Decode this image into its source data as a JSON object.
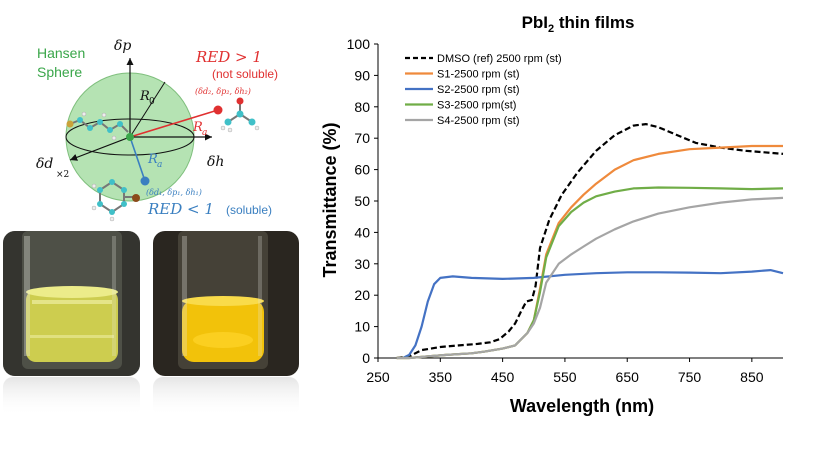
{
  "hansen": {
    "sphere_label_1": "Hansen",
    "sphere_label_2": "Sphere",
    "axis_dp": "δp",
    "axis_dh": "δh",
    "axis_dd": "δd",
    "axis_dd_sub": "×2",
    "r0": "R",
    "r0_sub": "0",
    "ra": "R",
    "ra_sub": "a",
    "red_gt": "RED > 1",
    "not_soluble": "(not soluble)",
    "red_lt": "RED < 1",
    "soluble": "(soluble)",
    "point2": "(δd₂, δp₂, δh₂)",
    "point1": "(δd₁, δp₁, δh₁)",
    "colors": {
      "sphere": "#b5e3b3",
      "red": "#e03030",
      "blue": "#3a7fc0",
      "green_text": "#3aa64a"
    }
  },
  "photos": {
    "left_liquid_color": "#d8d850",
    "right_liquid_color": "#f2c20a"
  },
  "chart_data": {
    "type": "line",
    "title_main": "PbI",
    "title_sub": "2",
    "title_rest": " thin films",
    "xlabel": "Wavelength (nm)",
    "ylabel": "Transmittance (%)",
    "xlim": [
      250,
      900
    ],
    "ylim": [
      0,
      100
    ],
    "xticks": [
      250,
      350,
      450,
      550,
      650,
      750,
      850
    ],
    "yticks": [
      0,
      10,
      20,
      30,
      40,
      50,
      60,
      70,
      80,
      90,
      100
    ],
    "grid": false,
    "legend_position": "top-left",
    "series": [
      {
        "name": "DMSO (ref) 2500 rpm (st)",
        "color": "#000000",
        "dash": true,
        "points": [
          [
            280,
            0
          ],
          [
            300,
            0.5
          ],
          [
            320,
            2.5
          ],
          [
            350,
            3.5
          ],
          [
            380,
            4
          ],
          [
            410,
            4.5
          ],
          [
            430,
            5
          ],
          [
            445,
            6
          ],
          [
            460,
            8.5
          ],
          [
            470,
            11
          ],
          [
            480,
            15
          ],
          [
            488,
            18
          ],
          [
            497,
            18.5
          ],
          [
            503,
            23
          ],
          [
            510,
            35
          ],
          [
            525,
            44
          ],
          [
            545,
            52
          ],
          [
            570,
            59
          ],
          [
            600,
            66
          ],
          [
            630,
            71
          ],
          [
            660,
            74
          ],
          [
            680,
            74.5
          ],
          [
            700,
            73.5
          ],
          [
            730,
            71
          ],
          [
            760,
            68.5
          ],
          [
            800,
            67
          ],
          [
            840,
            66
          ],
          [
            870,
            65.5
          ],
          [
            900,
            65
          ]
        ]
      },
      {
        "name": "S1-2500 rpm (st)",
        "color": "#ef8a3c",
        "dash": false,
        "points": [
          [
            280,
            0
          ],
          [
            300,
            0
          ],
          [
            330,
            0.5
          ],
          [
            360,
            1
          ],
          [
            400,
            1.5
          ],
          [
            420,
            2
          ],
          [
            450,
            3
          ],
          [
            470,
            4
          ],
          [
            490,
            8
          ],
          [
            500,
            12
          ],
          [
            510,
            22
          ],
          [
            520,
            33
          ],
          [
            540,
            43
          ],
          [
            560,
            48
          ],
          [
            580,
            52
          ],
          [
            600,
            55.5
          ],
          [
            630,
            60
          ],
          [
            660,
            63
          ],
          [
            700,
            65
          ],
          [
            750,
            66.5
          ],
          [
            800,
            67
          ],
          [
            850,
            67.5
          ],
          [
            900,
            67.5
          ]
        ]
      },
      {
        "name": "S2-2500 rpm (st)",
        "color": "#4472c4",
        "dash": false,
        "points": [
          [
            290,
            0
          ],
          [
            300,
            1
          ],
          [
            310,
            4
          ],
          [
            320,
            10
          ],
          [
            330,
            18
          ],
          [
            340,
            23.5
          ],
          [
            350,
            25.5
          ],
          [
            370,
            26
          ],
          [
            400,
            25.5
          ],
          [
            450,
            25.2
          ],
          [
            500,
            25.5
          ],
          [
            550,
            26.5
          ],
          [
            600,
            27
          ],
          [
            650,
            27.3
          ],
          [
            700,
            27.3
          ],
          [
            750,
            27.2
          ],
          [
            800,
            27
          ],
          [
            850,
            27.5
          ],
          [
            880,
            28
          ],
          [
            900,
            27
          ]
        ]
      },
      {
        "name": "S3-2500 rpm(st)",
        "color": "#70ad47",
        "dash": false,
        "points": [
          [
            280,
            0
          ],
          [
            300,
            0
          ],
          [
            330,
            0.5
          ],
          [
            360,
            1
          ],
          [
            400,
            1.5
          ],
          [
            420,
            2
          ],
          [
            450,
            3
          ],
          [
            470,
            4
          ],
          [
            490,
            8
          ],
          [
            500,
            12
          ],
          [
            510,
            21
          ],
          [
            520,
            32
          ],
          [
            540,
            42
          ],
          [
            560,
            46.5
          ],
          [
            580,
            49.5
          ],
          [
            600,
            51.5
          ],
          [
            630,
            53
          ],
          [
            660,
            54
          ],
          [
            700,
            54.3
          ],
          [
            750,
            54.2
          ],
          [
            800,
            54
          ],
          [
            850,
            53.8
          ],
          [
            900,
            54
          ]
        ]
      },
      {
        "name": "S4-2500 rpm (st)",
        "color": "#a5a5a5",
        "dash": false,
        "points": [
          [
            280,
            0
          ],
          [
            300,
            0
          ],
          [
            330,
            0.5
          ],
          [
            360,
            1
          ],
          [
            400,
            1.5
          ],
          [
            420,
            2
          ],
          [
            450,
            3
          ],
          [
            470,
            4
          ],
          [
            490,
            8
          ],
          [
            500,
            11
          ],
          [
            510,
            16
          ],
          [
            520,
            24
          ],
          [
            540,
            30
          ],
          [
            560,
            33
          ],
          [
            580,
            35.5
          ],
          [
            600,
            38
          ],
          [
            630,
            41
          ],
          [
            660,
            43.5
          ],
          [
            700,
            46
          ],
          [
            750,
            48
          ],
          [
            800,
            49.5
          ],
          [
            850,
            50.5
          ],
          [
            900,
            51
          ]
        ]
      }
    ]
  }
}
